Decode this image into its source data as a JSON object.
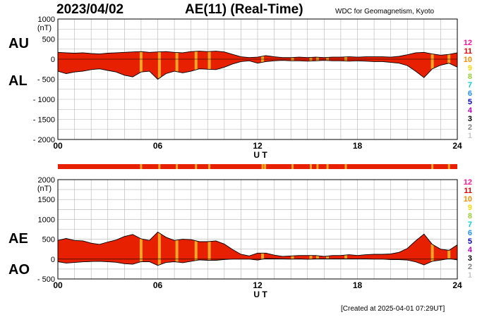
{
  "title": {
    "date": "2023/04/02",
    "index": "AE(11) (Real-Time)"
  },
  "credit": "WDC for Geomagnetism, Kyoto",
  "created": "[Created at 2025-04-01 07:29UT]",
  "side_labels": {
    "au": "AU",
    "al": "AL",
    "ae": "AE",
    "ao": "AO"
  },
  "legend": [
    {
      "label": "12",
      "color": "#ff1493"
    },
    {
      "label": "11",
      "color": "#e60000"
    },
    {
      "label": "10",
      "color": "#ff8c00"
    },
    {
      "label": "9",
      "color": "#ffd700"
    },
    {
      "label": "8",
      "color": "#9acd32"
    },
    {
      "label": "7",
      "color": "#00ced1"
    },
    {
      "label": "6",
      "color": "#1e90ff"
    },
    {
      "label": "5",
      "color": "#0000cd"
    },
    {
      "label": "4",
      "color": "#c000c0"
    },
    {
      "label": "3",
      "color": "#000000"
    },
    {
      "label": "2",
      "color": "#808080"
    },
    {
      "label": "1",
      "color": "#c8c8c8"
    }
  ],
  "chart_data": [
    {
      "type": "area",
      "panel": "AU/AL",
      "ylabel": "(nT)",
      "xlabel": "U T",
      "xlim": [
        0,
        24
      ],
      "ylim": [
        -2000,
        1000
      ],
      "x_ticks": [
        "00",
        "06",
        "12",
        "18",
        "24"
      ],
      "y_ticks": [
        "1000",
        "500",
        "0",
        "- 500",
        "- 1000",
        "- 1500",
        "- 2000"
      ],
      "grid": true,
      "fill_color": "#e62000",
      "highlight_color": "#f5a623",
      "series": [
        {
          "name": "AU",
          "x": [
            0,
            0.5,
            1,
            1.5,
            2,
            2.5,
            3,
            3.5,
            4,
            4.5,
            5,
            5.5,
            6,
            6.5,
            7,
            7.5,
            8,
            8.5,
            9,
            9.5,
            10,
            10.5,
            11,
            11.5,
            12,
            12.5,
            13,
            13.5,
            14,
            14.5,
            15,
            15.5,
            16,
            16.5,
            17,
            17.5,
            18,
            18.5,
            19,
            19.5,
            20,
            20.5,
            21,
            21.5,
            22,
            22.5,
            23,
            23.5,
            24
          ],
          "values": [
            170,
            160,
            150,
            160,
            140,
            130,
            150,
            160,
            170,
            180,
            190,
            170,
            180,
            190,
            170,
            160,
            190,
            200,
            190,
            200,
            180,
            120,
            60,
            40,
            50,
            90,
            60,
            40,
            40,
            50,
            40,
            50,
            40,
            50,
            50,
            60,
            50,
            60,
            60,
            60,
            50,
            70,
            110,
            160,
            170,
            130,
            100,
            120,
            160
          ]
        },
        {
          "name": "AL",
          "x": [
            0,
            0.5,
            1,
            1.5,
            2,
            2.5,
            3,
            3.5,
            4,
            4.5,
            5,
            5.5,
            6,
            6.5,
            7,
            7.5,
            8,
            8.5,
            9,
            9.5,
            10,
            10.5,
            11,
            11.5,
            12,
            12.5,
            13,
            13.5,
            14,
            14.5,
            15,
            15.5,
            16,
            16.5,
            17,
            17.5,
            18,
            18.5,
            19,
            19.5,
            20,
            20.5,
            21,
            21.5,
            22,
            22.5,
            23,
            23.5,
            24
          ],
          "values": [
            -300,
            -360,
            -320,
            -300,
            -260,
            -240,
            -280,
            -320,
            -400,
            -440,
            -320,
            -300,
            -500,
            -360,
            -300,
            -340,
            -300,
            -240,
            -250,
            -260,
            -200,
            -120,
            -60,
            -40,
            -100,
            -60,
            -40,
            -30,
            -40,
            -40,
            -50,
            -40,
            -30,
            -40,
            -40,
            -50,
            -40,
            -50,
            -60,
            -60,
            -80,
            -100,
            -160,
            -300,
            -460,
            -240,
            -150,
            -100,
            -200
          ]
        }
      ]
    },
    {
      "type": "area",
      "panel": "AE/AO",
      "ylabel": "(nT)",
      "xlabel": "U T",
      "xlim": [
        0,
        24
      ],
      "ylim": [
        -500,
        2000
      ],
      "x_ticks": [
        "00",
        "06",
        "12",
        "18",
        "24"
      ],
      "y_ticks": [
        "2000",
        "1500",
        "1000",
        "500",
        "0",
        "- 500"
      ],
      "grid": true,
      "fill_color": "#e62000",
      "highlight_color": "#f5a623",
      "series": [
        {
          "name": "AE",
          "x": [
            0,
            0.5,
            1,
            1.5,
            2,
            2.5,
            3,
            3.5,
            4,
            4.5,
            5,
            5.5,
            6,
            6.5,
            7,
            7.5,
            8,
            8.5,
            9,
            9.5,
            10,
            10.5,
            11,
            11.5,
            12,
            12.5,
            13,
            13.5,
            14,
            14.5,
            15,
            15.5,
            16,
            16.5,
            17,
            17.5,
            18,
            18.5,
            19,
            19.5,
            20,
            20.5,
            21,
            21.5,
            22,
            22.5,
            23,
            23.5,
            24
          ],
          "values": [
            470,
            520,
            470,
            460,
            400,
            370,
            430,
            480,
            570,
            620,
            510,
            470,
            680,
            550,
            470,
            500,
            490,
            440,
            440,
            460,
            380,
            240,
            120,
            80,
            150,
            150,
            100,
            70,
            80,
            90,
            90,
            90,
            70,
            90,
            90,
            110,
            90,
            110,
            120,
            120,
            130,
            170,
            270,
            460,
            630,
            370,
            250,
            220,
            360
          ]
        },
        {
          "name": "AO",
          "x": [
            0,
            0.5,
            1,
            1.5,
            2,
            2.5,
            3,
            3.5,
            4,
            4.5,
            5,
            5.5,
            6,
            6.5,
            7,
            7.5,
            8,
            8.5,
            9,
            9.5,
            10,
            10.5,
            11,
            11.5,
            12,
            12.5,
            13,
            13.5,
            14,
            14.5,
            15,
            15.5,
            16,
            16.5,
            17,
            17.5,
            18,
            18.5,
            19,
            19.5,
            20,
            20.5,
            21,
            21.5,
            22,
            22.5,
            23,
            23.5,
            24
          ],
          "values": [
            -65,
            -100,
            -85,
            -70,
            -60,
            -55,
            -65,
            -80,
            -115,
            -130,
            -65,
            -65,
            -160,
            -85,
            -65,
            -90,
            -55,
            -20,
            -30,
            -30,
            -10,
            0,
            0,
            0,
            -25,
            15,
            10,
            5,
            0,
            5,
            -5,
            5,
            5,
            5,
            5,
            5,
            5,
            5,
            0,
            0,
            -15,
            -15,
            -25,
            -70,
            -145,
            -55,
            -25,
            10,
            -20
          ]
        }
      ],
      "highlight_hours": [
        5.0,
        6.1,
        7.15,
        8.3,
        9.1,
        12.3,
        14.1,
        15.2,
        15.6,
        16.2,
        17.3,
        22.5,
        23.5
      ]
    }
  ],
  "status_bar": {
    "highlight_hours": [
      5.0,
      6.1,
      7.15,
      8.3,
      9.1,
      12.3,
      12.45,
      14.1,
      15.2,
      15.6,
      16.2,
      17.3,
      22.5,
      23.5
    ]
  }
}
